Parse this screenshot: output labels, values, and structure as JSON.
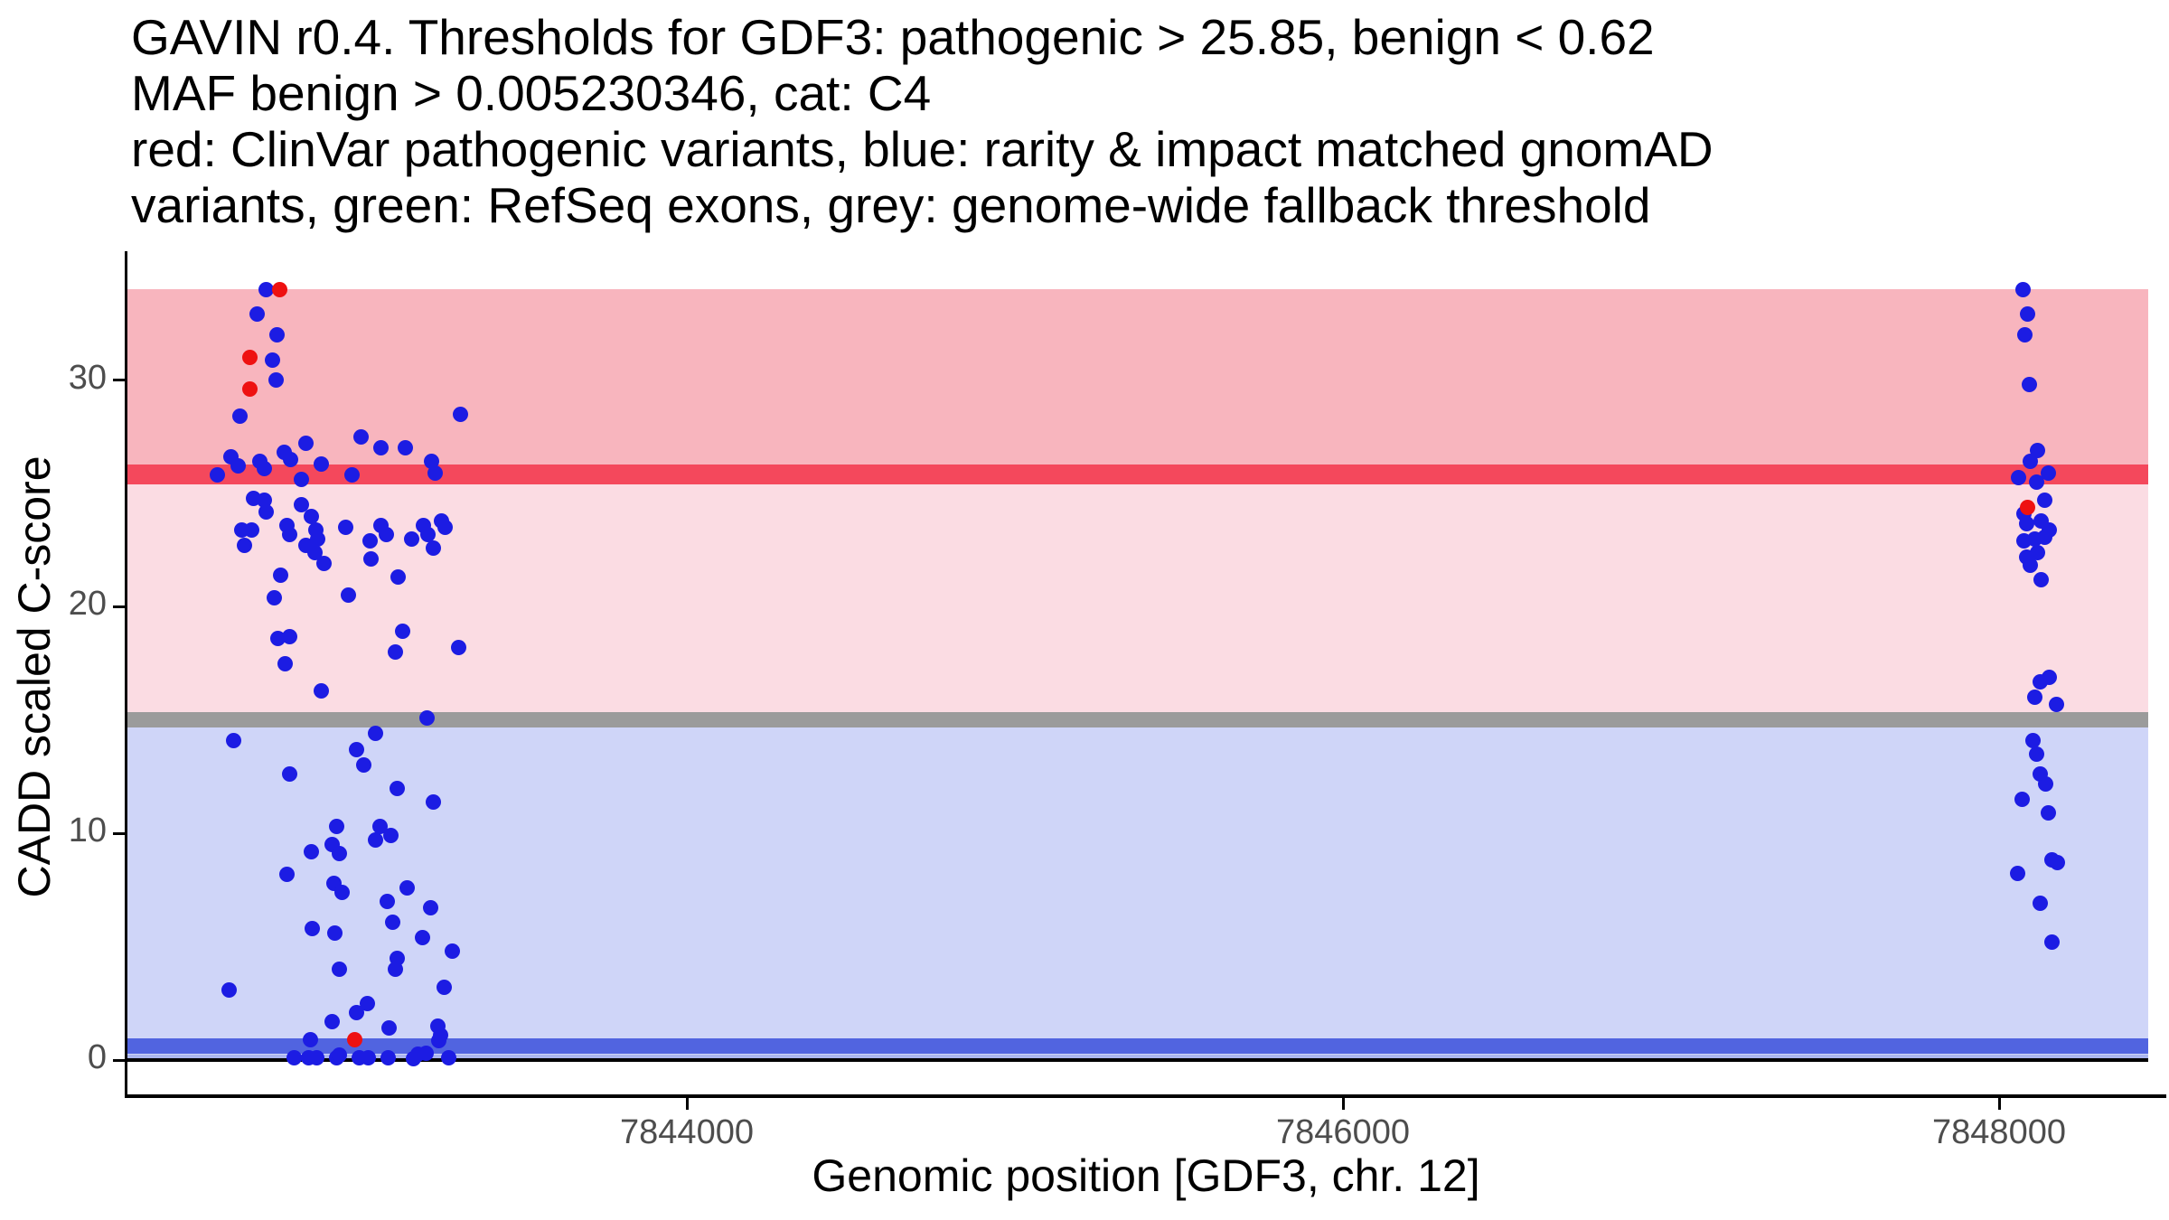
{
  "title_lines": [
    "GAVIN r0.4. Thresholds for GDF3: pathogenic > 25.85, benign < 0.62",
    "MAF benign > 0.005230346, cat: C4",
    "red: ClinVar pathogenic variants, blue: rarity & impact matched gnomAD",
    "variants, green: RefSeq exons, grey: genome-wide fallback threshold"
  ],
  "colors": {
    "pathogenic_region": "#F8B5BE",
    "vus_region": "#FBDCE3",
    "benign_region": "#CFD5F8",
    "pathogenic_line": "#F4485C",
    "fallback_line": "#9B9B9B",
    "benign_line": "#5164E0",
    "benign_line_soft": "#ABB6EF",
    "zero_line": "#000000",
    "point_blue": "#1C1CE3",
    "point_red": "#EE1111",
    "tick_text": "#4d4d4d",
    "axis_text": "#000000"
  },
  "chart_data": {
    "type": "scatter",
    "title": "GAVIN r0.4. Thresholds for GDF3: pathogenic > 25.85, benign < 0.62 MAF benign > 0.005230346, cat: C4",
    "xlabel": "Genomic position [GDF3, chr. 12]",
    "ylabel": "CADD scaled C-score",
    "x_ticks": [
      7844000,
      7846000,
      7848000
    ],
    "y_ticks": [
      0,
      10,
      20,
      30
    ],
    "xlim": [
      7842292,
      7848490
    ],
    "ylim": [
      -1.6,
      35.7
    ],
    "grid": false,
    "legend_position": "none",
    "thresholds": {
      "pathogenic_gt": 25.85,
      "benign_lt": 0.62,
      "maf_benign_gt": "0.005230346",
      "category": "C4",
      "genome_wide_fallback": 15
    },
    "regions": [
      {
        "name": "pathogenic-region",
        "from": 25.85,
        "to": 34.02,
        "color": "#F8B5BE"
      },
      {
        "name": "vus-region",
        "from": 15,
        "to": 25.85,
        "color": "#FBDCE3"
      },
      {
        "name": "benign-region",
        "from": 0.08,
        "to": 15,
        "color": "#CFD5F8"
      }
    ],
    "hlines": [
      {
        "name": "pathogenic-threshold-line",
        "value": 25.85,
        "thickness": 22,
        "color": "#F4485C"
      },
      {
        "name": "fallback-threshold-line",
        "value": 15,
        "thickness": 17,
        "color": "#9B9B9B"
      },
      {
        "name": "benign-threshold-line",
        "value": 0.62,
        "thickness": 17,
        "color": "#5164E0"
      },
      {
        "name": "benign-threshold-soft-edge",
        "value": 0.14,
        "thickness": 5,
        "color": "#ABB6EF"
      },
      {
        "name": "zero-line",
        "value": 0,
        "thickness": 4,
        "color": "#000000"
      }
    ],
    "series": [
      {
        "name": "rarity & impact matched gnomAD variants",
        "color": "#1C1CE3",
        "points": [
          [
            7842719,
            34.0
          ],
          [
            7842689,
            32.9
          ],
          [
            7842752,
            32.0
          ],
          [
            7842736,
            30.9
          ],
          [
            7842749,
            30.0
          ],
          [
            7842639,
            28.4
          ],
          [
            7843310,
            28.5
          ],
          [
            7843007,
            27.5
          ],
          [
            7842838,
            27.2
          ],
          [
            7843068,
            27.0
          ],
          [
            7843141,
            27.0
          ],
          [
            7842774,
            26.8
          ],
          [
            7842793,
            26.5
          ],
          [
            7842609,
            26.6
          ],
          [
            7842631,
            26.2
          ],
          [
            7842697,
            26.4
          ],
          [
            7842711,
            26.1
          ],
          [
            7842570,
            25.8
          ],
          [
            7842885,
            26.3
          ],
          [
            7843222,
            26.4
          ],
          [
            7843233,
            25.9
          ],
          [
            7842980,
            25.8
          ],
          [
            7842824,
            25.6
          ],
          [
            7842678,
            24.8
          ],
          [
            7842711,
            24.7
          ],
          [
            7842719,
            24.2
          ],
          [
            7842824,
            24.5
          ],
          [
            7842854,
            24.0
          ],
          [
            7842960,
            23.5
          ],
          [
            7842642,
            23.4
          ],
          [
            7842674,
            23.4
          ],
          [
            7842780,
            23.6
          ],
          [
            7842789,
            23.2
          ],
          [
            7842870,
            23.4
          ],
          [
            7842874,
            23.0
          ],
          [
            7843067,
            23.6
          ],
          [
            7843083,
            23.2
          ],
          [
            7843198,
            23.6
          ],
          [
            7843212,
            23.2
          ],
          [
            7843253,
            23.8
          ],
          [
            7843263,
            23.5
          ],
          [
            7843160,
            23.0
          ],
          [
            7843035,
            22.9
          ],
          [
            7843228,
            22.6
          ],
          [
            7842651,
            22.7
          ],
          [
            7842839,
            22.7
          ],
          [
            7842867,
            22.4
          ],
          [
            7842894,
            21.9
          ],
          [
            7843037,
            22.1
          ],
          [
            7842763,
            21.4
          ],
          [
            7843121,
            21.3
          ],
          [
            7842742,
            20.4
          ],
          [
            7842967,
            20.5
          ],
          [
            7842753,
            18.6
          ],
          [
            7842790,
            18.7
          ],
          [
            7843134,
            18.9
          ],
          [
            7843111,
            18.0
          ],
          [
            7843304,
            18.2
          ],
          [
            7842775,
            17.5
          ],
          [
            7842886,
            16.3
          ],
          [
            7843209,
            15.1
          ],
          [
            7843051,
            14.4
          ],
          [
            7842618,
            14.1
          ],
          [
            7842994,
            13.7
          ],
          [
            7843014,
            13.0
          ],
          [
            7842790,
            12.6
          ],
          [
            7843116,
            12.0
          ],
          [
            7843226,
            11.4
          ],
          [
            7842932,
            10.3
          ],
          [
            7843065,
            10.3
          ],
          [
            7843097,
            9.9
          ],
          [
            7843051,
            9.7
          ],
          [
            7842854,
            9.2
          ],
          [
            7842918,
            9.5
          ],
          [
            7842941,
            9.1
          ],
          [
            7842782,
            8.2
          ],
          [
            7842923,
            7.8
          ],
          [
            7842950,
            7.4
          ],
          [
            7843148,
            7.6
          ],
          [
            7843088,
            7.0
          ],
          [
            7843218,
            6.7
          ],
          [
            7843102,
            6.1
          ],
          [
            7842858,
            5.8
          ],
          [
            7842927,
            5.6
          ],
          [
            7843193,
            5.4
          ],
          [
            7843285,
            4.8
          ],
          [
            7843117,
            4.5
          ],
          [
            7843112,
            4.0
          ],
          [
            7842942,
            4.0
          ],
          [
            7843259,
            3.2
          ],
          [
            7842604,
            3.1
          ],
          [
            7843027,
            2.5
          ],
          [
            7842993,
            2.1
          ],
          [
            7842919,
            1.7
          ],
          [
            7843092,
            1.4
          ],
          [
            7843242,
            1.5
          ],
          [
            7843250,
            1.1
          ],
          [
            7842853,
            0.9
          ],
          [
            7843245,
            0.85
          ],
          [
            7843204,
            0.3
          ],
          [
            7843181,
            0.25
          ],
          [
            7842804,
            0.1
          ],
          [
            7842846,
            0.1
          ],
          [
            7842873,
            0.1
          ],
          [
            7842933,
            0.1
          ],
          [
            7842942,
            0.2
          ],
          [
            7843002,
            0.1
          ],
          [
            7843029,
            0.1
          ],
          [
            7843089,
            0.1
          ],
          [
            7843167,
            0.05
          ],
          [
            7843273,
            0.1
          ],
          [
            7848073,
            34.0
          ],
          [
            7848088,
            32.9
          ],
          [
            7848078,
            32.0
          ],
          [
            7848092,
            29.8
          ],
          [
            7848116,
            26.9
          ],
          [
            7848096,
            26.4
          ],
          [
            7848149,
            25.9
          ],
          [
            7848058,
            25.7
          ],
          [
            7848113,
            25.5
          ],
          [
            7848140,
            24.7
          ],
          [
            7848077,
            24.1
          ],
          [
            7848085,
            23.65
          ],
          [
            7848127,
            23.8
          ],
          [
            7848152,
            23.4
          ],
          [
            7848077,
            22.9
          ],
          [
            7848110,
            23.0
          ],
          [
            7848138,
            23.05
          ],
          [
            7848118,
            22.4
          ],
          [
            7848085,
            22.2
          ],
          [
            7848096,
            21.85
          ],
          [
            7848127,
            21.2
          ],
          [
            7848124,
            16.7
          ],
          [
            7848152,
            16.9
          ],
          [
            7848108,
            16.0
          ],
          [
            7848174,
            15.7
          ],
          [
            7848103,
            14.1
          ],
          [
            7848115,
            13.5
          ],
          [
            7848124,
            12.6
          ],
          [
            7848143,
            12.2
          ],
          [
            7848071,
            11.5
          ],
          [
            7848149,
            10.9
          ],
          [
            7848161,
            8.85
          ],
          [
            7848179,
            8.7
          ],
          [
            7848057,
            8.25
          ],
          [
            7848124,
            6.9
          ],
          [
            7848161,
            5.2
          ]
        ]
      },
      {
        "name": "ClinVar pathogenic variants",
        "color": "#EE1111",
        "points": [
          [
            7842758,
            34.0
          ],
          [
            7842667,
            31.0
          ],
          [
            7842668,
            29.6
          ],
          [
            7842988,
            0.9
          ],
          [
            7848088,
            24.4
          ]
        ]
      }
    ]
  },
  "axis": {
    "y_tick_labels": [
      "0",
      "10",
      "20",
      "30"
    ],
    "x_tick_labels": [
      "7844000",
      "7846000",
      "7848000"
    ]
  }
}
